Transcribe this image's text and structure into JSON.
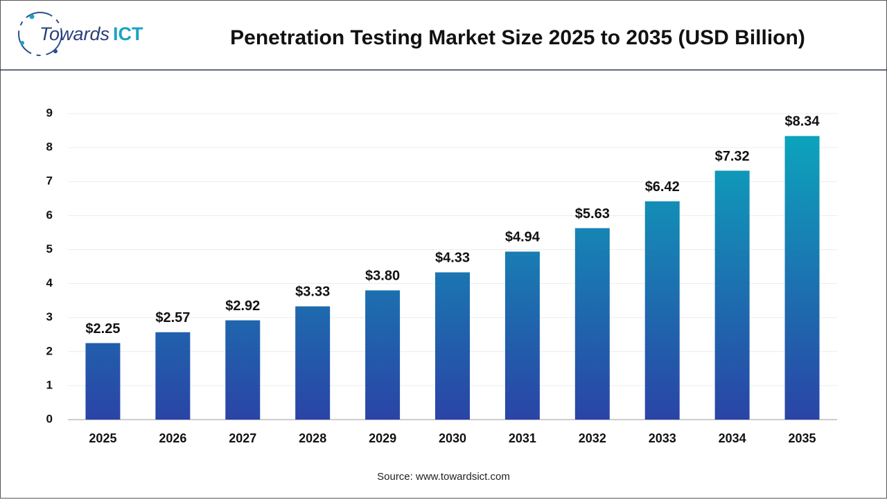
{
  "logo": [
    "Towards",
    "ICT"
  ],
  "chart_data": {
    "type": "bar",
    "title": "Penetration Testing Market Size 2025 to 2035 (USD Billion)",
    "categories": [
      "2025",
      "2026",
      "2027",
      "2028",
      "2029",
      "2030",
      "2031",
      "2032",
      "2033",
      "2034",
      "2035"
    ],
    "values": [
      2.25,
      2.57,
      2.92,
      3.33,
      3.8,
      4.33,
      4.94,
      5.63,
      6.42,
      7.32,
      8.34
    ],
    "value_labels": [
      "$2.25",
      "$2.57",
      "$2.92",
      "$3.33",
      "$3.80",
      "$4.33",
      "$4.94",
      "$5.63",
      "$6.42",
      "$7.32",
      "$8.34"
    ],
    "color": [
      "#0aabbd",
      "#2a44a6"
    ],
    "ylim": [
      0,
      9
    ],
    "yticks": [
      0,
      1,
      2,
      3,
      4,
      5,
      6,
      7,
      8,
      9
    ],
    "grid": true,
    "source": "Source: www.towardsict.com"
  }
}
